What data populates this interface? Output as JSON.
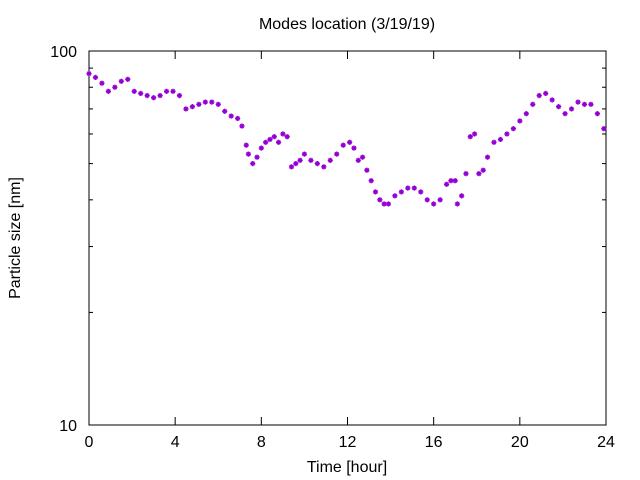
{
  "chart_data": {
    "type": "scatter",
    "title": "Modes location (3/19/19)",
    "xlabel": "Time [hour]",
    "ylabel": "Particle size [nm]",
    "xlim": [
      0,
      24
    ],
    "ylim": [
      10,
      100
    ],
    "yscale": "log",
    "xticks": [
      0,
      4,
      8,
      12,
      16,
      20,
      24
    ],
    "xtick_labels": [
      "0",
      "4",
      "8",
      "12",
      "16",
      "20",
      "24"
    ],
    "yticks": [
      10,
      100
    ],
    "ytick_labels": [
      "10",
      "100"
    ],
    "marker_color": "#9400d3",
    "grid": false,
    "series": [
      {
        "x": [
          0.0,
          0.3,
          0.6,
          0.9,
          1.2,
          1.5,
          1.8,
          2.1,
          2.4,
          2.7,
          3.0,
          3.3,
          3.6,
          3.9,
          4.2,
          4.5,
          4.8,
          5.1,
          5.4,
          5.7,
          6.0,
          6.3,
          6.6,
          6.9,
          7.1,
          7.3,
          7.4,
          7.6,
          7.8,
          8.0,
          8.2,
          8.4,
          8.6,
          8.8,
          9.0,
          9.2,
          9.4,
          9.6,
          9.8,
          10.0,
          10.3,
          10.6,
          10.9,
          11.2,
          11.5,
          11.8,
          12.1,
          12.3,
          12.5,
          12.7,
          12.9,
          13.1,
          13.3,
          13.5,
          13.7,
          13.9,
          14.2,
          14.5,
          14.8,
          15.1,
          15.4,
          15.7,
          16.0,
          16.3,
          16.6,
          16.8,
          17.0,
          17.1,
          17.3,
          17.5,
          17.7,
          17.9,
          18.1,
          18.3,
          18.5,
          18.8,
          19.1,
          19.4,
          19.7,
          20.0,
          20.3,
          20.6,
          20.9,
          21.2,
          21.5,
          21.8,
          22.1,
          22.4,
          22.7,
          23.0,
          23.3,
          23.6,
          23.9
        ],
        "y": [
          87,
          85,
          82,
          78,
          80,
          83,
          84,
          78,
          77,
          76,
          75,
          76,
          78,
          78,
          76,
          70,
          71,
          72,
          73,
          73,
          72,
          69,
          67,
          66,
          63,
          56,
          53,
          50,
          52,
          55,
          57,
          58,
          59,
          57,
          60,
          59,
          49,
          50,
          51,
          53,
          51,
          50,
          49,
          51,
          53,
          56,
          57,
          55,
          51,
          52,
          48,
          45,
          42,
          40,
          39,
          39,
          41,
          42,
          43,
          43,
          42,
          40,
          39,
          40,
          44,
          45,
          45,
          39,
          41,
          47,
          59,
          60,
          47,
          48,
          52,
          57,
          58,
          60,
          62,
          65,
          68,
          72,
          76,
          77,
          74,
          71,
          68,
          70,
          73,
          72,
          72,
          68,
          62
        ]
      }
    ]
  }
}
